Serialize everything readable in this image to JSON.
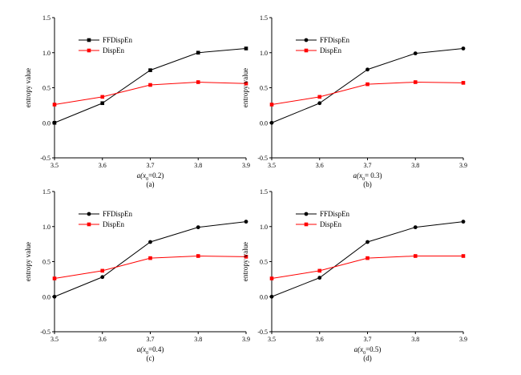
{
  "chart_data": [
    {
      "type": "line",
      "caption": "(a)",
      "xlabel_main": "a(x",
      "xlabel_sub": "0",
      "xlabel_tail": "=0.2)",
      "ylabel": "entropy value",
      "x": [
        3.5,
        3.6,
        3.7,
        3.8,
        3.9
      ],
      "xlim": [
        3.5,
        3.9
      ],
      "ylim": [
        -0.5,
        1.5
      ],
      "xticks": [
        "3.5",
        "3.6",
        "3.7",
        "3.8",
        "3.9"
      ],
      "yticks": [
        "-0.5",
        "0.0",
        "0.5",
        "1.0",
        "1.5"
      ],
      "legend_position": "top-left",
      "grid": false,
      "series": [
        {
          "name": "FFDispEn",
          "color": "#000000",
          "marker": "square",
          "values": [
            0.0,
            0.28,
            0.75,
            1.0,
            1.06
          ]
        },
        {
          "name": "DispEn",
          "color": "#ff0000",
          "marker": "square",
          "values": [
            0.26,
            0.37,
            0.54,
            0.58,
            0.56
          ]
        }
      ]
    },
    {
      "type": "line",
      "caption": "(b)",
      "xlabel_main": "a(x",
      "xlabel_sub": "0",
      "xlabel_tail": "= 0.3)",
      "ylabel": "entropy value",
      "x": [
        3.5,
        3.6,
        3.7,
        3.8,
        3.9
      ],
      "xlim": [
        3.5,
        3.9
      ],
      "ylim": [
        -0.5,
        1.5
      ],
      "xticks": [
        "3.5",
        "3.6",
        "3.7",
        "3.8",
        "3.9"
      ],
      "yticks": [
        "-0.5",
        "0.0",
        "0.5",
        "1.0",
        "1.5"
      ],
      "legend_position": "top-left",
      "grid": false,
      "series": [
        {
          "name": "FFDispEn",
          "color": "#000000",
          "marker": "circle",
          "values": [
            0.0,
            0.28,
            0.76,
            0.99,
            1.06
          ]
        },
        {
          "name": "DispEn",
          "color": "#ff0000",
          "marker": "square",
          "values": [
            0.26,
            0.37,
            0.55,
            0.58,
            0.57
          ]
        }
      ]
    },
    {
      "type": "line",
      "caption": "(c)",
      "xlabel_main": "a(x",
      "xlabel_sub": "0",
      "xlabel_tail": "=0.4)",
      "ylabel": "entropy value",
      "x": [
        3.5,
        3.6,
        3.7,
        3.8,
        3.9
      ],
      "xlim": [
        3.5,
        3.9
      ],
      "ylim": [
        -0.5,
        1.5
      ],
      "xticks": [
        "3.5",
        "3.6",
        "3.7",
        "3.8",
        "3.9"
      ],
      "yticks": [
        "-0.5",
        "0.0",
        "0.5",
        "1.0",
        "1.5"
      ],
      "legend_position": "top-left",
      "grid": false,
      "series": [
        {
          "name": "FFDispEn",
          "color": "#000000",
          "marker": "circle",
          "values": [
            0.0,
            0.28,
            0.78,
            0.99,
            1.07
          ]
        },
        {
          "name": "DispEn",
          "color": "#ff0000",
          "marker": "square",
          "values": [
            0.26,
            0.37,
            0.55,
            0.58,
            0.57
          ]
        }
      ]
    },
    {
      "type": "line",
      "caption": "(d)",
      "xlabel_main": "a(x",
      "xlabel_sub": "0",
      "xlabel_tail": "=0.5)",
      "ylabel": "entropy value",
      "x": [
        3.5,
        3.6,
        3.7,
        3.8,
        3.9
      ],
      "xlim": [
        3.5,
        3.9
      ],
      "ylim": [
        -0.5,
        1.5
      ],
      "xticks": [
        "3.5",
        "3.6",
        "3.7",
        "3.8",
        "3.9"
      ],
      "yticks": [
        "-0.5",
        "0.0",
        "0.5",
        "1.0",
        "1.5"
      ],
      "legend_position": "top-left",
      "grid": false,
      "series": [
        {
          "name": "FFDispEn",
          "color": "#000000",
          "marker": "circle",
          "values": [
            0.0,
            0.27,
            0.78,
            0.99,
            1.07
          ]
        },
        {
          "name": "DispEn",
          "color": "#ff0000",
          "marker": "square",
          "values": [
            0.26,
            0.37,
            0.55,
            0.58,
            0.58
          ]
        }
      ]
    }
  ]
}
